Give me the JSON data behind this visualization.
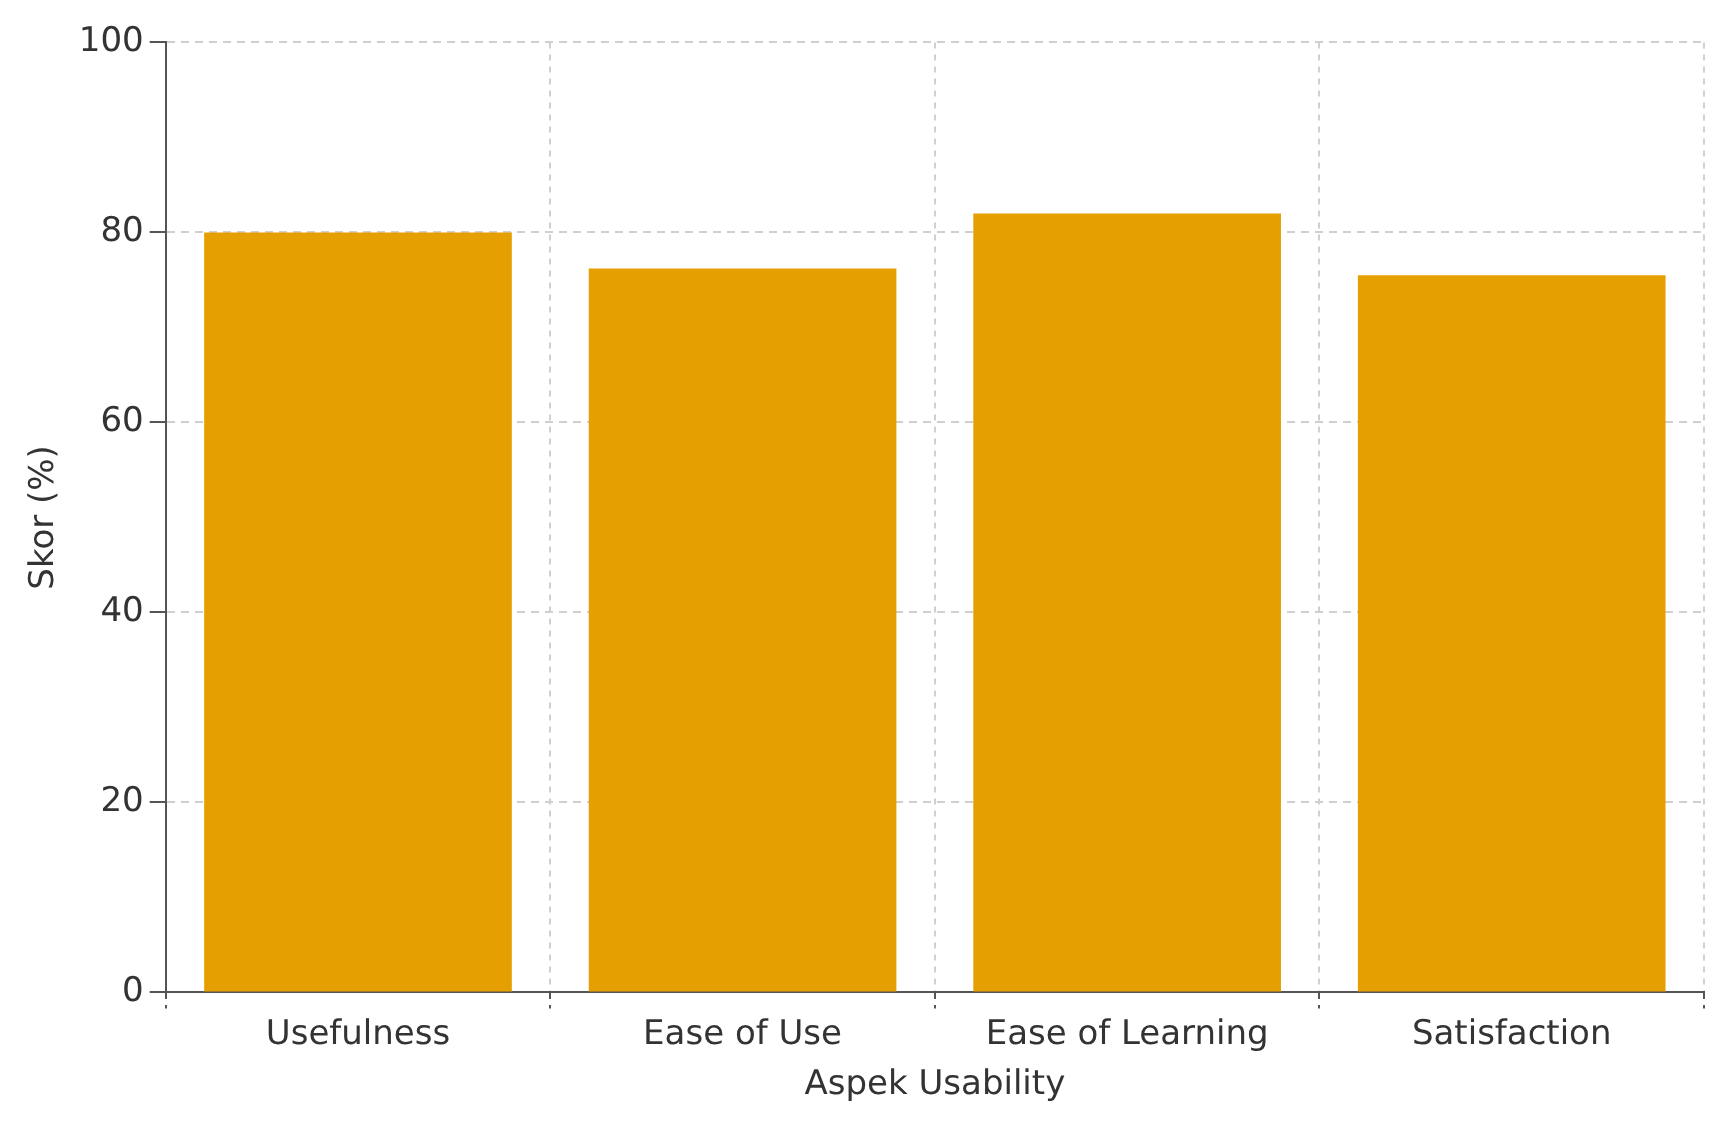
{
  "chart_data": {
    "type": "bar",
    "xlabel": "Aspek Usability",
    "ylabel": "Skor (%)",
    "categories": [
      "Usefulness",
      "Ease of Use",
      "Ease of Learning",
      "Satisfaction"
    ],
    "values": [
      80,
      76.2,
      82,
      75.5
    ],
    "color": "#e69f00",
    "ylim": [
      0,
      100
    ],
    "yticks": [
      0,
      20,
      40,
      60,
      80,
      100
    ],
    "grid": true
  }
}
